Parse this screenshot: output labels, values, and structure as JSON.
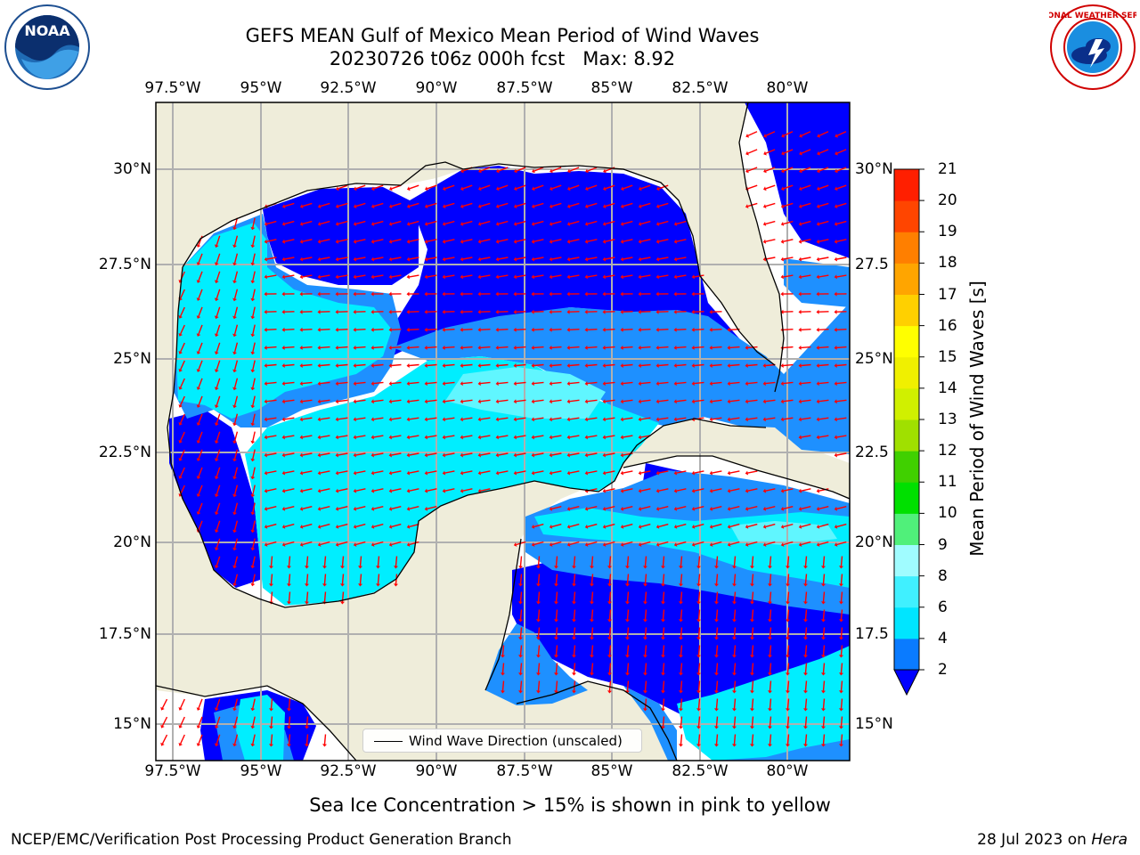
{
  "title_line1": "GEFS MEAN Gulf of Mexico Mean Period of Wind Waves",
  "title_line2": "20230726 t06z 000h fcst   Max: 8.92",
  "lon_labels": [
    "97.5°W",
    "95°W",
    "92.5°W",
    "90°W",
    "87.5°W",
    "85°W",
    "82.5°W",
    "80°W"
  ],
  "lat_labels_left": [
    "30°N",
    "27.5°N",
    "25°N",
    "22.5°N",
    "20°N",
    "17.5°N",
    "15°N"
  ],
  "lat_labels_right": [
    "30°N",
    "27.5",
    "25°N",
    "22.5",
    "20°N",
    "17.5",
    "15°N"
  ],
  "colorbar": {
    "label": "Mean Period of Wind Waves [s]",
    "ticks": [
      "2",
      "4",
      "6",
      "8",
      "9",
      "10",
      "11",
      "12",
      "13",
      "14",
      "15",
      "16",
      "17",
      "18",
      "19",
      "20",
      "21"
    ],
    "colors": [
      "#0a7bff",
      "#00e5ff",
      "#40f0ff",
      "#a0fcff",
      "#50f07a",
      "#00e000",
      "#40d000",
      "#a0e000",
      "#d0f000",
      "#f0f000",
      "#ffff00",
      "#ffd000",
      "#ffa500",
      "#ff7f00",
      "#ff4500",
      "#ff1f00"
    ],
    "under_color": "#0000ff"
  },
  "legend_text": "Wind Wave Direction (unscaled)",
  "footer_note": "Sea Ice Concentration > 15% is shown in pink to yellow",
  "credit_left": "NCEP/EMC/Verification Post Processing Product Generation Branch",
  "credit_right_prefix": "28 Jul 2023 on ",
  "credit_right_host": "Hera",
  "logos": {
    "left": "noaa-logo",
    "right": "nws-logo"
  },
  "colors": {
    "land": "#efedda",
    "arrow": "#ff0000",
    "grid": "#b0b0b0",
    "deep_blue": "#0000ff",
    "mid_blue": "#1e90ff",
    "cyan": "#00eeff",
    "light_cyan": "#60f6ff"
  }
}
